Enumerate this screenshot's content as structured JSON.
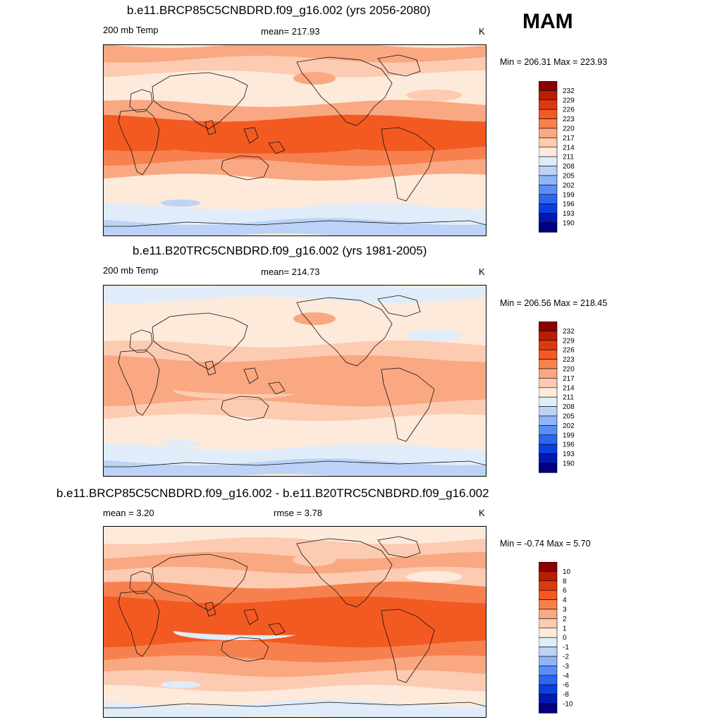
{
  "season": "MAM",
  "palette_temp": [
    "#000080",
    "#0019b3",
    "#0a3fe0",
    "#2b66f0",
    "#5a8ef5",
    "#8fb4f7",
    "#bcd3f7",
    "#e0ecfa",
    "#fdeada",
    "#fccbb1",
    "#f9a882",
    "#f6814f",
    "#f35a22",
    "#db3a0e",
    "#b81d06",
    "#8b0000"
  ],
  "panels": [
    {
      "title": "b.e11.BRCP85C5CNBDRD.f09_g16.002 (yrs 2056-2080)",
      "left_label": "200 mb Temp",
      "center_label": "mean= 217.93",
      "units": "K",
      "minmax": "Min = 206.31 Max = 223.93",
      "colorbar_ticks": [
        "232",
        "229",
        "226",
        "223",
        "220",
        "217",
        "214",
        "211",
        "208",
        "205",
        "202",
        "199",
        "196",
        "193",
        "190"
      ],
      "band_levels": [
        10,
        9,
        8,
        8,
        10,
        12,
        12,
        11,
        10,
        8,
        8,
        7,
        6
      ],
      "blob_levels": [
        11,
        10,
        12,
        6,
        9
      ]
    },
    {
      "title": "b.e11.B20TRC5CNBDRD.f09_g16.002 (yrs 1981-2005)",
      "left_label": "200 mb Temp",
      "center_label": "mean= 214.73",
      "units": "K",
      "minmax": "Min = 206.56 Max = 218.45",
      "colorbar_ticks": [
        "232",
        "229",
        "226",
        "223",
        "220",
        "217",
        "214",
        "211",
        "208",
        "205",
        "202",
        "199",
        "196",
        "193",
        "190"
      ],
      "band_levels": [
        7,
        8,
        8,
        8,
        9,
        10,
        10,
        10,
        9,
        8,
        8,
        7,
        6
      ],
      "blob_levels": [
        9,
        10,
        10,
        7,
        7
      ]
    },
    {
      "title": "b.e11.BRCP85C5CNBDRD.f09_g16.002 - b.e11.B20TRC5CNBDRD.f09_g16.002",
      "left_label": "mean =   3.20",
      "center_label": "rmse =   3.78",
      "units": "K",
      "minmax": "Min =  -0.74 Max =   5.70",
      "colorbar_ticks": [
        "10",
        "8",
        "6",
        "4",
        "3",
        "2",
        "1",
        "0",
        "-1",
        "-2",
        "-3",
        "-4",
        "-6",
        "-8",
        "-10"
      ],
      "band_levels": [
        8,
        9,
        10,
        9,
        11,
        12,
        12,
        12,
        11,
        10,
        9,
        8,
        7
      ],
      "blob_levels": [
        7,
        9,
        12,
        7,
        8
      ]
    }
  ]
}
